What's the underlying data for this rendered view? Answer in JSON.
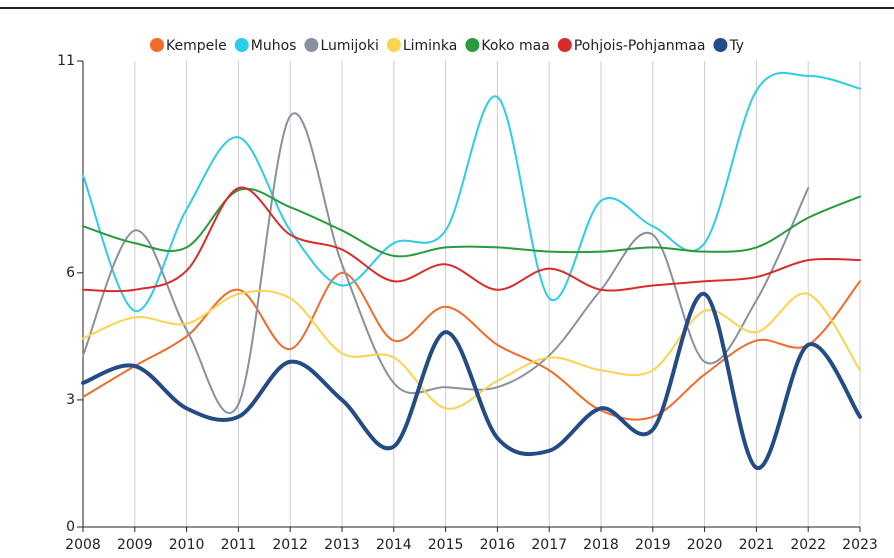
{
  "chart_data": {
    "type": "line",
    "x": [
      2008,
      2009,
      2010,
      2011,
      2012,
      2013,
      2014,
      2015,
      2016,
      2017,
      2018,
      2019,
      2020,
      2021,
      2022,
      2023
    ],
    "xlim": [
      2008,
      2023
    ],
    "xticks": [
      2008,
      2009,
      2010,
      2011,
      2012,
      2013,
      2014,
      2015,
      2016,
      2017,
      2018,
      2019,
      2020,
      2021,
      2022,
      2023
    ],
    "ylim": [
      0,
      11
    ],
    "yticks": [
      0,
      3,
      6,
      11
    ],
    "grid": true,
    "series": [
      {
        "name": "Kempele",
        "color": "#f26b2a",
        "values": [
          3.07,
          3.8,
          4.5,
          5.6,
          4.2,
          6.0,
          4.4,
          5.2,
          4.3,
          3.7,
          2.75,
          2.6,
          3.6,
          4.4,
          4.3,
          5.8
        ]
      },
      {
        "name": "Muhos",
        "color": "#2ccde8",
        "values": [
          8.3,
          5.1,
          7.5,
          9.2,
          7.0,
          5.7,
          6.7,
          7.0,
          10.15,
          5.4,
          7.7,
          7.1,
          6.7,
          10.3,
          10.65,
          10.35
        ]
      },
      {
        "name": "Lumijoki",
        "color": "#8a909c",
        "values": [
          4.05,
          7.0,
          4.65,
          2.9,
          9.7,
          6.2,
          3.4,
          3.3,
          3.3,
          4.05,
          5.6,
          6.9,
          3.9,
          5.35,
          8.0,
          null
        ]
      },
      {
        "name": "Liminka",
        "color": "#fcd34f",
        "values": [
          4.45,
          4.95,
          4.8,
          5.5,
          5.4,
          4.1,
          4.0,
          2.8,
          3.45,
          4.0,
          3.7,
          3.7,
          5.1,
          4.6,
          5.5,
          3.7
        ]
      },
      {
        "name": "Koko maa",
        "color": "#2a9a3e",
        "values": [
          7.1,
          6.7,
          6.6,
          7.95,
          7.55,
          7.0,
          6.4,
          6.6,
          6.6,
          6.5,
          6.5,
          6.6,
          6.5,
          6.6,
          7.3,
          7.8
        ]
      },
      {
        "name": "Pohjois-Pohjanmaa",
        "color": "#d92b2b",
        "values": [
          5.6,
          5.6,
          6.05,
          8.0,
          6.9,
          6.55,
          5.8,
          6.2,
          5.6,
          6.1,
          5.6,
          5.7,
          5.8,
          5.9,
          6.3,
          6.3
        ]
      },
      {
        "name": "Ty",
        "color": "#234b86",
        "values": [
          3.4,
          3.8,
          2.8,
          2.6,
          3.9,
          3.0,
          1.9,
          4.6,
          2.1,
          1.8,
          2.8,
          2.3,
          5.5,
          1.4,
          4.3,
          2.6
        ]
      }
    ]
  }
}
